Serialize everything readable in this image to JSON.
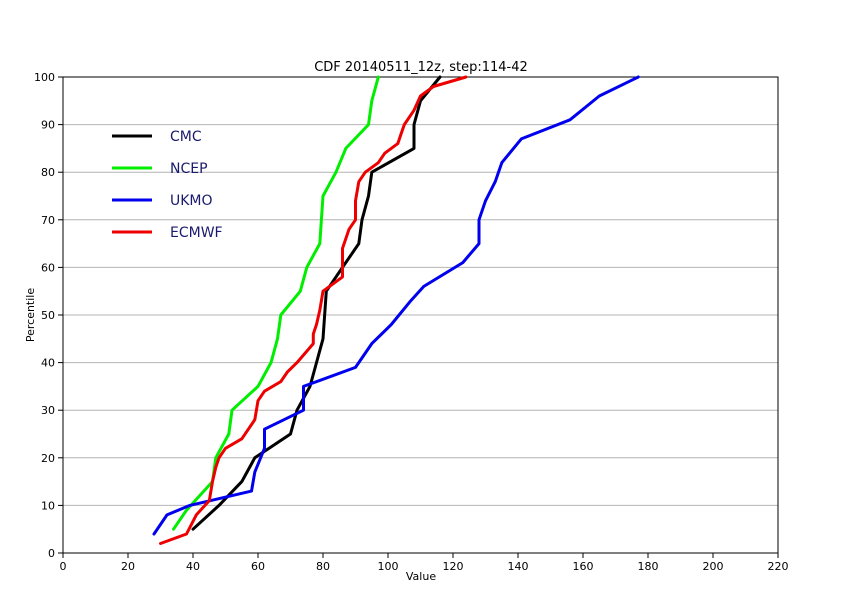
{
  "chart_data": {
    "type": "line",
    "title": "CDF 20140511_12z, step:114-42",
    "xlabel": "Value",
    "ylabel": "Percentile",
    "xlim": [
      0,
      220
    ],
    "ylim": [
      0,
      100
    ],
    "xticks": [
      0,
      20,
      40,
      60,
      80,
      100,
      120,
      140,
      160,
      180,
      200,
      220
    ],
    "yticks": [
      0,
      10,
      20,
      30,
      40,
      50,
      60,
      70,
      80,
      90,
      100
    ],
    "grid": "horizontal",
    "legend_position": "top-left",
    "series": [
      {
        "name": "CMC",
        "color": "#000000",
        "points": [
          [
            40,
            5
          ],
          [
            48,
            10
          ],
          [
            55,
            15
          ],
          [
            59,
            20
          ],
          [
            70,
            25
          ],
          [
            72,
            30
          ],
          [
            76,
            35
          ],
          [
            78,
            40
          ],
          [
            80,
            45
          ],
          [
            81,
            55
          ],
          [
            86,
            60
          ],
          [
            91,
            65
          ],
          [
            92,
            70
          ],
          [
            94,
            75
          ],
          [
            95,
            80
          ],
          [
            108,
            85
          ],
          [
            108,
            90
          ],
          [
            110,
            95
          ],
          [
            116,
            100
          ]
        ]
      },
      {
        "name": "NCEP",
        "color": "#00ee00",
        "points": [
          [
            34,
            5
          ],
          [
            38,
            9
          ],
          [
            42,
            12
          ],
          [
            46,
            15
          ],
          [
            47,
            20
          ],
          [
            51,
            25
          ],
          [
            52,
            30
          ],
          [
            60,
            35
          ],
          [
            64,
            40
          ],
          [
            66,
            45
          ],
          [
            67,
            50
          ],
          [
            73,
            55
          ],
          [
            75,
            60
          ],
          [
            79,
            65
          ],
          [
            80,
            75
          ],
          [
            84,
            80
          ],
          [
            87,
            85
          ],
          [
            94,
            90
          ],
          [
            95,
            95
          ],
          [
            97,
            100
          ]
        ]
      },
      {
        "name": "UKMO",
        "color": "#0000ee",
        "points": [
          [
            28,
            4
          ],
          [
            32,
            8
          ],
          [
            39,
            10
          ],
          [
            58,
            13
          ],
          [
            59,
            17
          ],
          [
            62,
            22
          ],
          [
            62,
            26
          ],
          [
            74,
            30
          ],
          [
            74,
            35
          ],
          [
            90,
            39
          ],
          [
            95,
            44
          ],
          [
            101,
            48
          ],
          [
            107,
            53
          ],
          [
            111,
            56
          ],
          [
            123,
            61
          ],
          [
            128,
            65
          ],
          [
            128,
            70
          ],
          [
            130,
            74
          ],
          [
            133,
            78
          ],
          [
            135,
            82
          ],
          [
            141,
            87
          ],
          [
            156,
            91
          ],
          [
            165,
            96
          ],
          [
            177,
            100
          ]
        ]
      },
      {
        "name": "ECMWF",
        "color": "#ee0000",
        "points": [
          [
            30,
            2
          ],
          [
            38,
            4
          ],
          [
            41,
            8
          ],
          [
            45,
            11
          ],
          [
            46,
            15
          ],
          [
            47,
            18
          ],
          [
            48,
            20
          ],
          [
            50,
            22
          ],
          [
            55,
            24
          ],
          [
            59,
            28
          ],
          [
            60,
            32
          ],
          [
            62,
            34
          ],
          [
            67,
            36
          ],
          [
            69,
            38
          ],
          [
            72,
            40
          ],
          [
            77,
            44
          ],
          [
            77,
            46
          ],
          [
            78,
            48
          ],
          [
            79,
            51
          ],
          [
            80,
            55
          ],
          [
            82,
            56
          ],
          [
            86,
            58
          ],
          [
            86,
            64
          ],
          [
            87,
            66
          ],
          [
            88,
            68
          ],
          [
            90,
            70
          ],
          [
            90,
            74
          ],
          [
            91,
            78
          ],
          [
            93,
            80
          ],
          [
            97,
            82
          ],
          [
            99,
            84
          ],
          [
            103,
            86
          ],
          [
            104,
            88
          ],
          [
            105,
            90
          ],
          [
            108,
            93
          ],
          [
            110,
            96
          ],
          [
            114,
            98
          ],
          [
            124,
            100
          ]
        ]
      }
    ]
  }
}
